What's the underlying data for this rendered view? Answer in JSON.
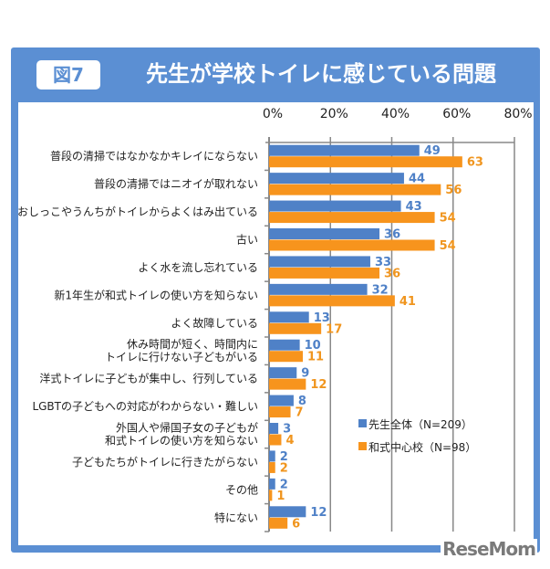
{
  "header": {
    "figure_label": "図7",
    "title": "先生が学校トイレに感じている問題"
  },
  "logo": "ReseMom",
  "chart_data": {
    "type": "bar",
    "orientation": "horizontal",
    "title": "先生が学校トイレに感じている問題",
    "categories": [
      [
        "普段の清掃ではなかなかキレイにならない"
      ],
      [
        "普段の清掃ではニオイが取れない"
      ],
      [
        "おしっこやうんちがトイレからよくはみ出ている"
      ],
      [
        "古い"
      ],
      [
        "よく水を流し忘れている"
      ],
      [
        "新1年生が和式トイレの使い方を知らない"
      ],
      [
        "よく故障している"
      ],
      [
        "休み時間が短く、時間内に",
        "トイレに行けない子どもがいる"
      ],
      [
        "洋式トイレに子どもが集中し、行列している"
      ],
      [
        "LGBTの子どもへの対応がわからない・難しい"
      ],
      [
        "外国人や帰国子女の子どもが",
        "和式トイレの使い方を知らない"
      ],
      [
        "子どもたちがトイレに行きたがらない"
      ],
      [
        "その他"
      ],
      [
        "特にない"
      ]
    ],
    "xlim": [
      0,
      80
    ],
    "ticks": [
      "0%",
      "20%",
      "40%",
      "60%",
      "80%"
    ],
    "grid": true,
    "legend": "center-right",
    "series": [
      {
        "name": "先生全体（N=209）",
        "color": "#4f81c7",
        "values": [
          49,
          44,
          43,
          36,
          33,
          32,
          13,
          10,
          9,
          8,
          3,
          2,
          2,
          12
        ]
      },
      {
        "name": "和式中心校（N=98）",
        "color": "#f7941d",
        "values": [
          63,
          56,
          54,
          54,
          36,
          41,
          17,
          11,
          12,
          7,
          4,
          2,
          1,
          6
        ]
      }
    ]
  }
}
